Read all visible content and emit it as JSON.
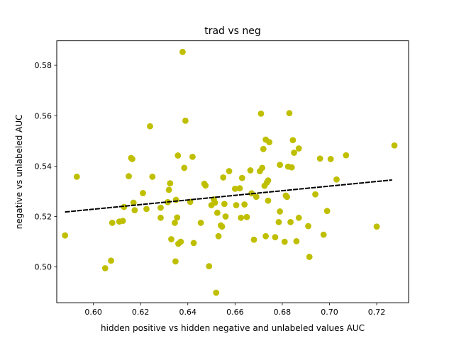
{
  "chart_data": {
    "type": "scatter",
    "title": "trad vs neg",
    "xlabel": "hidden positive vs hidden negative and unlabeled values AUC",
    "ylabel": "negative vs unlabeled AUC",
    "xlim": [
      0.5845,
      0.7335
    ],
    "ylim": [
      0.4858,
      0.5897
    ],
    "x_ticks": [
      0.6,
      0.62,
      0.64,
      0.66,
      0.68,
      0.7,
      0.72
    ],
    "x_tick_labels": [
      "0.60",
      "0.62",
      "0.64",
      "0.66",
      "0.68",
      "0.70",
      "0.72"
    ],
    "y_ticks": [
      0.5,
      0.52,
      0.54,
      0.56,
      0.58
    ],
    "y_tick_labels": [
      "0.50",
      "0.52",
      "0.54",
      "0.56",
      "0.58"
    ],
    "grid": false,
    "marker_color": "#bfbf00",
    "line_color": "#000000",
    "points": [
      [
        0.588,
        0.5125
      ],
      [
        0.593,
        0.5358
      ],
      [
        0.605,
        0.4995
      ],
      [
        0.6075,
        0.5025
      ],
      [
        0.608,
        0.5175
      ],
      [
        0.611,
        0.518
      ],
      [
        0.6125,
        0.5183
      ],
      [
        0.613,
        0.5238
      ],
      [
        0.615,
        0.536
      ],
      [
        0.616,
        0.5432
      ],
      [
        0.6165,
        0.5428
      ],
      [
        0.617,
        0.5255
      ],
      [
        0.6175,
        0.5225
      ],
      [
        0.621,
        0.5293
      ],
      [
        0.6225,
        0.523
      ],
      [
        0.624,
        0.5558
      ],
      [
        0.625,
        0.5358
      ],
      [
        0.6285,
        0.5235
      ],
      [
        0.6285,
        0.5195
      ],
      [
        0.6315,
        0.5257
      ],
      [
        0.632,
        0.5306
      ],
      [
        0.6325,
        0.5332
      ],
      [
        0.633,
        0.511
      ],
      [
        0.6345,
        0.5175
      ],
      [
        0.6348,
        0.5022
      ],
      [
        0.635,
        0.5266
      ],
      [
        0.6355,
        0.5196
      ],
      [
        0.6358,
        0.5442
      ],
      [
        0.636,
        0.5092
      ],
      [
        0.637,
        0.51
      ],
      [
        0.6378,
        0.5853
      ],
      [
        0.6385,
        0.5393
      ],
      [
        0.639,
        0.558
      ],
      [
        0.641,
        0.5258
      ],
      [
        0.642,
        0.5437
      ],
      [
        0.6425,
        0.5095
      ],
      [
        0.6455,
        0.5175
      ],
      [
        0.647,
        0.533
      ],
      [
        0.6475,
        0.5323
      ],
      [
        0.649,
        0.5003
      ],
      [
        0.65,
        0.5245
      ],
      [
        0.651,
        0.5268
      ],
      [
        0.6515,
        0.5255
      ],
      [
        0.652,
        0.4898
      ],
      [
        0.6525,
        0.5215
      ],
      [
        0.653,
        0.5122
      ],
      [
        0.654,
        0.5165
      ],
      [
        0.6545,
        0.516
      ],
      [
        0.655,
        0.5355
      ],
      [
        0.6555,
        0.525
      ],
      [
        0.656,
        0.52
      ],
      [
        0.6575,
        0.538
      ],
      [
        0.66,
        0.531
      ],
      [
        0.6605,
        0.5245
      ],
      [
        0.662,
        0.5312
      ],
      [
        0.6625,
        0.5195
      ],
      [
        0.663,
        0.5353
      ],
      [
        0.664,
        0.5248
      ],
      [
        0.665,
        0.5198
      ],
      [
        0.6665,
        0.5383
      ],
      [
        0.667,
        0.5292
      ],
      [
        0.668,
        0.5108
      ],
      [
        0.669,
        0.5278
      ],
      [
        0.6705,
        0.538
      ],
      [
        0.671,
        0.5608
      ],
      [
        0.6715,
        0.5393
      ],
      [
        0.672,
        0.5468
      ],
      [
        0.6725,
        0.5322
      ],
      [
        0.673,
        0.5505
      ],
      [
        0.673,
        0.5122
      ],
      [
        0.6735,
        0.5335
      ],
      [
        0.674,
        0.5263
      ],
      [
        0.674,
        0.5343
      ],
      [
        0.6745,
        0.5495
      ],
      [
        0.677,
        0.5118
      ],
      [
        0.6785,
        0.5178
      ],
      [
        0.679,
        0.5405
      ],
      [
        0.679,
        0.522
      ],
      [
        0.681,
        0.51
      ],
      [
        0.6815,
        0.5283
      ],
      [
        0.682,
        0.5278
      ],
      [
        0.6825,
        0.5398
      ],
      [
        0.683,
        0.561
      ],
      [
        0.6835,
        0.5178
      ],
      [
        0.684,
        0.5395
      ],
      [
        0.6845,
        0.5503
      ],
      [
        0.685,
        0.5453
      ],
      [
        0.686,
        0.5102
      ],
      [
        0.687,
        0.547
      ],
      [
        0.687,
        0.5195
      ],
      [
        0.691,
        0.5162
      ],
      [
        0.6915,
        0.504
      ],
      [
        0.694,
        0.5288
      ],
      [
        0.696,
        0.543
      ],
      [
        0.6975,
        0.5128
      ],
      [
        0.699,
        0.5222
      ],
      [
        0.7005,
        0.5428
      ],
      [
        0.703,
        0.5347
      ],
      [
        0.707,
        0.5443
      ],
      [
        0.72,
        0.516
      ],
      [
        0.7275,
        0.5482
      ]
    ],
    "fit_line": {
      "x": [
        0.588,
        0.7265
      ],
      "y": [
        0.5218,
        0.5345
      ]
    }
  }
}
